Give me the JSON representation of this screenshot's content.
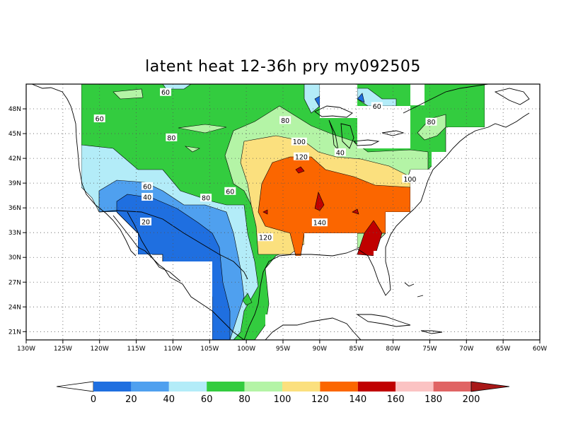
{
  "map": {
    "title": "latent heat 12-36h pry my092505",
    "lon_ticks": [
      "130W",
      "125W",
      "120W",
      "115W",
      "110W",
      "105W",
      "100W",
      "95W",
      "90W",
      "85W",
      "80W",
      "75W",
      "70W",
      "65W",
      "60W"
    ],
    "lat_ticks": [
      "48N",
      "45N",
      "42N",
      "39N",
      "36N",
      "33N",
      "30N",
      "27N",
      "24N",
      "21N"
    ],
    "lon_range": [
      -130,
      -60
    ],
    "lat_range": [
      20,
      51
    ],
    "grid": "dotted",
    "contour_labels": [
      {
        "text": "60",
        "lon": -111,
        "lat": 50.0
      },
      {
        "text": "60",
        "lon": -120.0,
        "lat": 46.8
      },
      {
        "text": "80",
        "lon": -110.2,
        "lat": 44.5
      },
      {
        "text": "80",
        "lon": -94.7,
        "lat": 46.6
      },
      {
        "text": "100",
        "lon": -92.8,
        "lat": 44.0
      },
      {
        "text": "120",
        "lon": -92.5,
        "lat": 42.2
      },
      {
        "text": "40",
        "lon": -87.2,
        "lat": 42.7
      },
      {
        "text": "60",
        "lon": -82.2,
        "lat": 48.3
      },
      {
        "text": "80",
        "lon": -74.8,
        "lat": 46.4
      },
      {
        "text": "100",
        "lon": -77.7,
        "lat": 39.5
      },
      {
        "text": "60",
        "lon": -113.5,
        "lat": 38.6
      },
      {
        "text": "40",
        "lon": -113.5,
        "lat": 37.3
      },
      {
        "text": "80",
        "lon": -105.5,
        "lat": 37.2
      },
      {
        "text": "60",
        "lon": -102.2,
        "lat": 38.0
      },
      {
        "text": "20",
        "lon": -113.7,
        "lat": 34.3
      },
      {
        "text": "140",
        "lon": -90.0,
        "lat": 34.2
      },
      {
        "text": "120",
        "lon": -97.4,
        "lat": 32.4
      }
    ],
    "colorbar": {
      "levels": [
        "0",
        "20",
        "40",
        "60",
        "80",
        "100",
        "120",
        "140",
        "160",
        "180",
        "200"
      ],
      "colors": [
        "#ffffff",
        "#1f6fe0",
        "#4fa0ef",
        "#b3ecf8",
        "#33cc3f",
        "#b4f4a6",
        "#fbe07e",
        "#fb6600",
        "#c00000",
        "#fbc3c3",
        "#e06464",
        "#a81818"
      ]
    }
  }
}
